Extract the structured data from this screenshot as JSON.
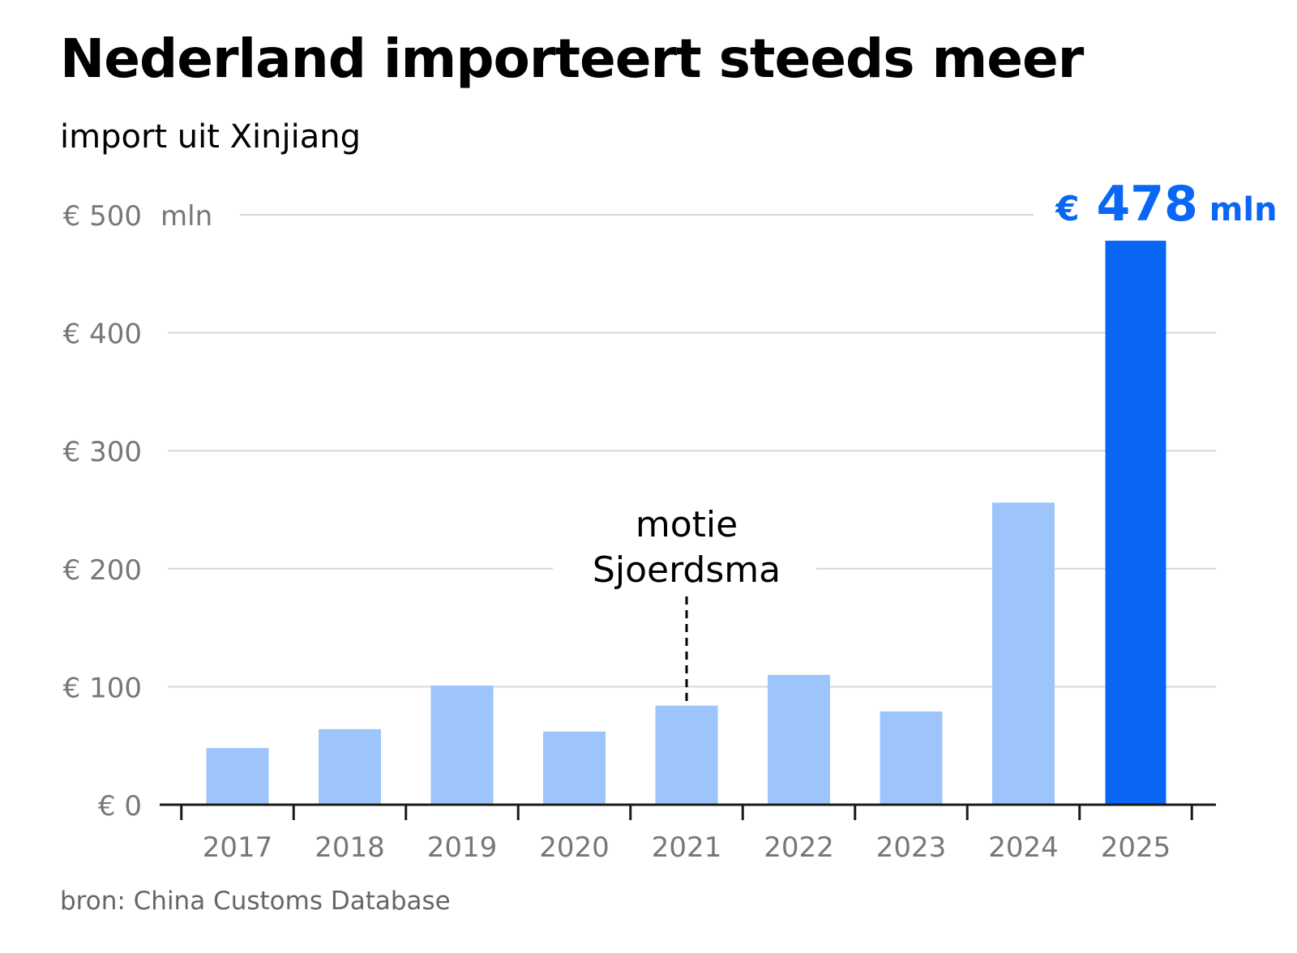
{
  "title": "Nederland importeert steeds meer",
  "subtitle": "import uit Xinjiang",
  "source": "bron: China Customs Database",
  "colors": {
    "bar": "#9dc4fb",
    "highlight": "#0a66f5",
    "grid": "#d7d7d7",
    "axis": "#1a1a1a",
    "tick_text": "#777777"
  },
  "chart_data": {
    "type": "bar",
    "title": "Nederland importeert steeds meer",
    "subtitle": "import uit Xinjiang",
    "unit_label": "mln",
    "categories": [
      "2017",
      "2018",
      "2019",
      "2020",
      "2021",
      "2022",
      "2023",
      "2024",
      "2025"
    ],
    "values": [
      48,
      64,
      101,
      62,
      84,
      110,
      79,
      256,
      478
    ],
    "highlight_index": 8,
    "highlight_label": {
      "currency": "€",
      "value": "478",
      "unit": "mln"
    },
    "ylim": [
      0,
      500
    ],
    "yticks": [
      0,
      100,
      200,
      300,
      400,
      500
    ],
    "ytick_labels": [
      "€ 0",
      "€ 100",
      "€ 200",
      "€ 300",
      "€ 400",
      "€ 500"
    ],
    "grid": true,
    "annotation": {
      "lines": [
        "motie",
        "Sjoerdsma"
      ],
      "category": "2021"
    }
  }
}
